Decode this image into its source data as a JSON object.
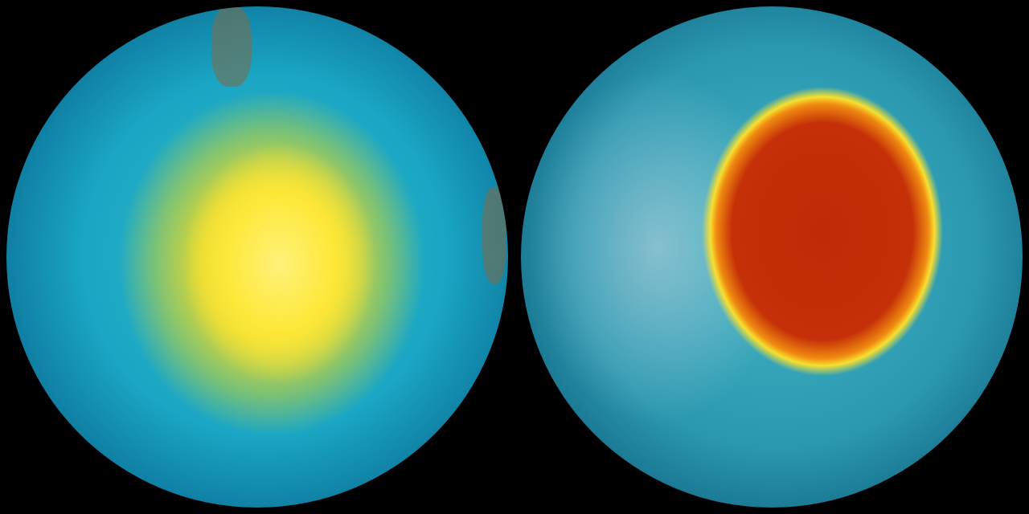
{
  "globes": [
    {
      "id": "left",
      "colors": {
        "center": "#fde83a",
        "ocean": "#1aa6c4",
        "edge": "#063a58"
      }
    },
    {
      "id": "right",
      "colors": {
        "center": "#c53008",
        "ring": "#f6e030",
        "ocean": "#2a98b0",
        "edge": "#063348"
      }
    }
  ]
}
